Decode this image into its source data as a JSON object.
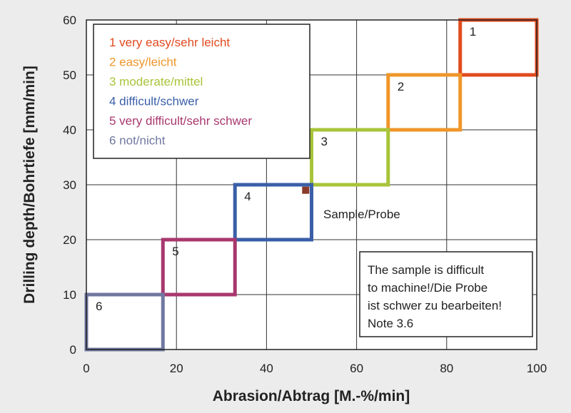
{
  "chart_data": {
    "type": "scatter",
    "xlabel": "Abrasion/Abtrag [M.-%/min]",
    "ylabel": "Drilling depth/Bohrtiefe [mm/min]",
    "xlim": [
      0,
      100
    ],
    "ylim": [
      0,
      60
    ],
    "x_ticks": [
      "0",
      "20",
      "40",
      "60",
      "80",
      "100"
    ],
    "y_ticks": [
      "0",
      "10",
      "20",
      "30",
      "40",
      "50",
      "60"
    ],
    "grid": true,
    "legend_position": "top-left",
    "legend": [
      {
        "text": "1  very easy/sehr leicht",
        "color": "#e04a1e"
      },
      {
        "text": "2  easy/leicht",
        "color": "#f0962a"
      },
      {
        "text": "3  moderate/mittel",
        "color": "#a8c43a"
      },
      {
        "text": "4  difficult/schwer",
        "color": "#3a5fa8"
      },
      {
        "text": "5  very difficult/sehr schwer",
        "color": "#a8386e"
      },
      {
        "text": "6  not/nicht",
        "color": "#7078a0"
      }
    ],
    "regions": [
      {
        "label": "1",
        "x": [
          83,
          100
        ],
        "y": [
          50,
          60
        ],
        "color": "#e04a1e"
      },
      {
        "label": "2",
        "x": [
          67,
          83
        ],
        "y": [
          40,
          50
        ],
        "color": "#f0962a"
      },
      {
        "label": "3",
        "x": [
          50,
          67
        ],
        "y": [
          30,
          40
        ],
        "color": "#a8c43a"
      },
      {
        "label": "4",
        "x": [
          33,
          50
        ],
        "y": [
          20,
          30
        ],
        "color": "#3a5fa8"
      },
      {
        "label": "5",
        "x": [
          17,
          33
        ],
        "y": [
          10,
          20
        ],
        "color": "#a8386e"
      },
      {
        "label": "6",
        "x": [
          0,
          17
        ],
        "y": [
          0,
          10
        ],
        "color": "#7078a0"
      }
    ],
    "sample": {
      "label": "Sample/Probe",
      "x": 48.7,
      "y": 29,
      "color": "#8a3a2a"
    },
    "note": [
      "The sample is difficult",
      "to machine!/Die Probe",
      "ist schwer zu bearbeiten!",
      "Note 3.6"
    ]
  }
}
